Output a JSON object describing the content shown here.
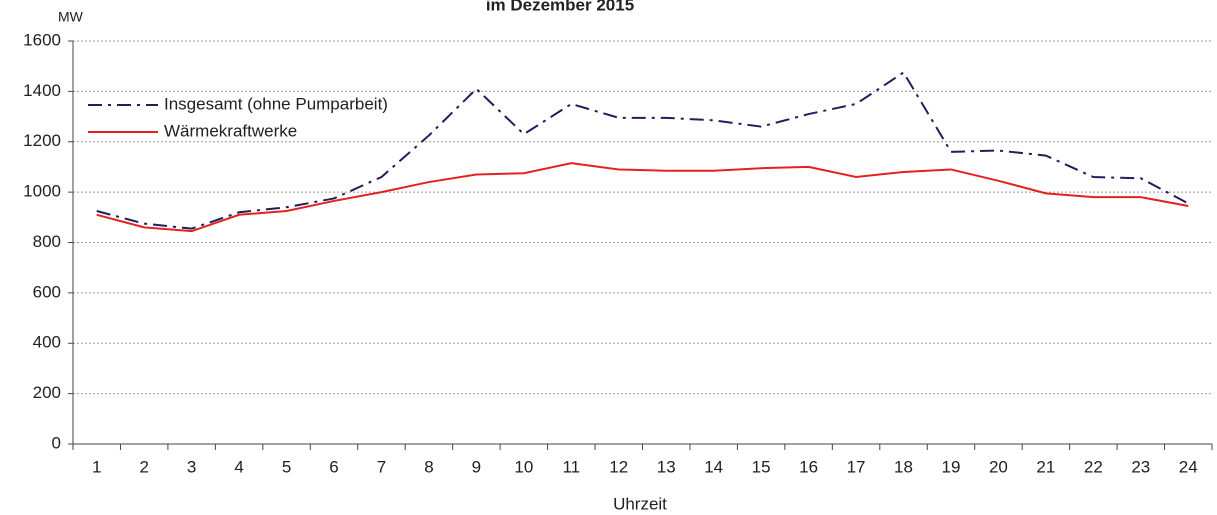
{
  "chart_data": {
    "type": "line",
    "title": "im Dezember 2015",
    "y_label": "MW",
    "x_label": "Uhrzeit",
    "categories": [
      "1",
      "2",
      "3",
      "4",
      "5",
      "6",
      "7",
      "8",
      "9",
      "10",
      "11",
      "12",
      "13",
      "14",
      "15",
      "16",
      "17",
      "18",
      "19",
      "20",
      "21",
      "22",
      "23",
      "24"
    ],
    "series": [
      {
        "name": "Insgesamt (ohne Pumparbeit)",
        "color": "#1f1f5c",
        "dash": "dashdot",
        "values": [
          925,
          875,
          855,
          920,
          940,
          975,
          1060,
          1225,
          1410,
          1230,
          1350,
          1295,
          1295,
          1285,
          1260,
          1310,
          1350,
          1475,
          1160,
          1165,
          1145,
          1060,
          1055,
          955
        ]
      },
      {
        "name": "Wärmekraftwerke",
        "color": "#e3221f",
        "dash": "solid",
        "values": [
          910,
          860,
          845,
          910,
          925,
          965,
          1000,
          1040,
          1070,
          1075,
          1115,
          1090,
          1085,
          1085,
          1095,
          1100,
          1060,
          1080,
          1090,
          1045,
          995,
          980,
          980,
          945
        ]
      }
    ],
    "ylim": [
      0,
      1600
    ],
    "yticks": [
      0,
      200,
      400,
      600,
      800,
      1000,
      1200,
      1400,
      1600
    ],
    "grid": true,
    "legend": "top-left"
  }
}
